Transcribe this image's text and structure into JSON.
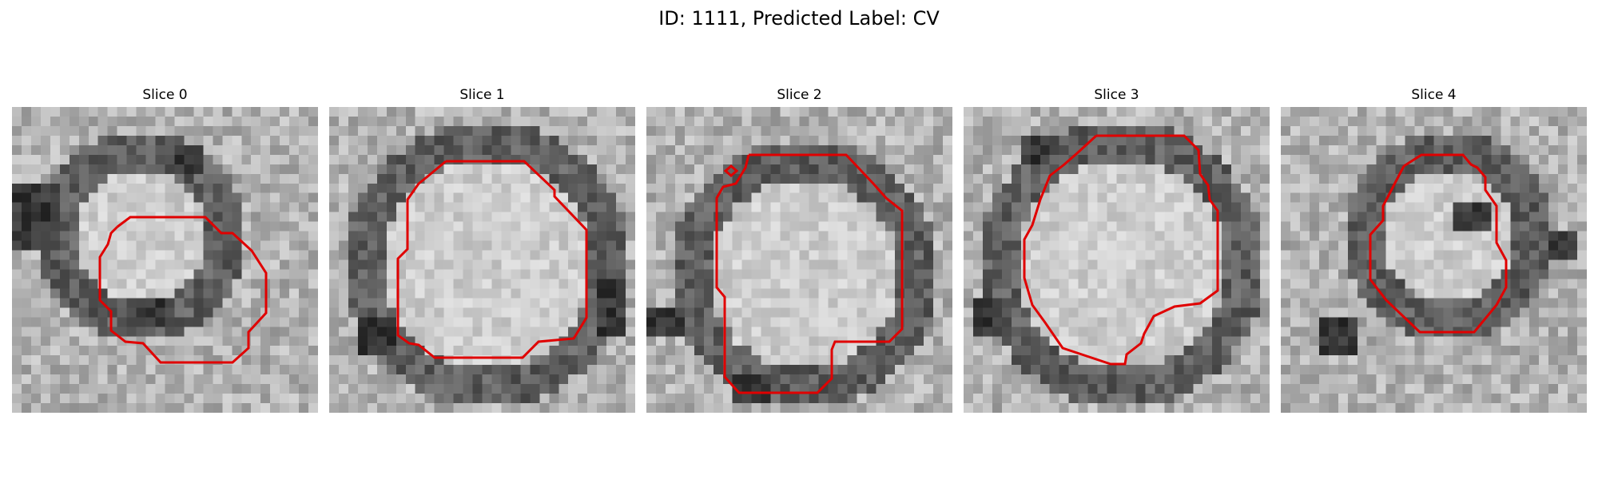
{
  "figure": {
    "title": "ID: 1111, Predicted Label: CV",
    "contour_color": "#e00000"
  },
  "slices": [
    {
      "title": "Slice 0"
    },
    {
      "title": "Slice 1"
    },
    {
      "title": "Slice 2"
    },
    {
      "title": "Slice 3"
    },
    {
      "title": "Slice 4"
    }
  ]
}
